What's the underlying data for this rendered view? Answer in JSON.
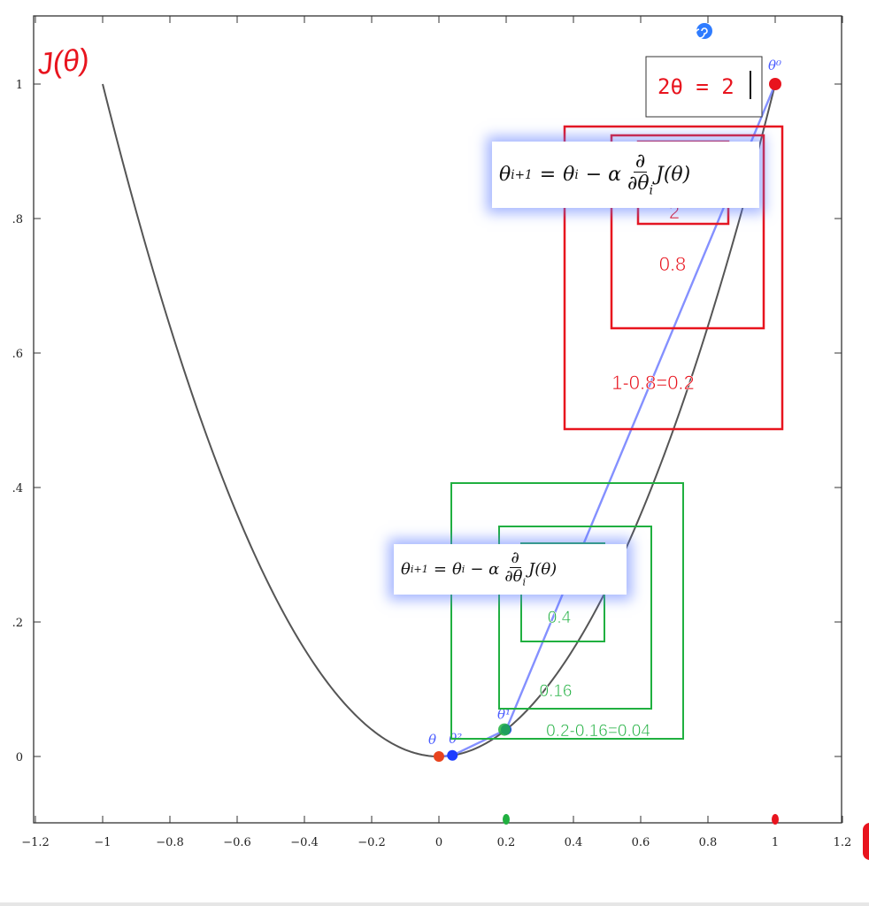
{
  "chart_data": {
    "type": "line",
    "xlim": [
      -1.2,
      1.2
    ],
    "ylim": [
      -0.1,
      1.1
    ],
    "x_ticks": [
      -1.2,
      -1,
      -0.8,
      -0.6,
      -0.4,
      -0.2,
      0,
      0.2,
      0.4,
      0.6,
      0.8,
      1,
      1.2
    ],
    "x_tick_labels": [
      "−1.2",
      "−1",
      "−0.8",
      "−0.6",
      "−0.4",
      "−0.2",
      "0",
      "0.2",
      "0.4",
      "0.6",
      "0.8",
      "1",
      "1.2"
    ],
    "y_ticks": [
      0,
      0.2,
      0.4,
      0.6,
      0.8,
      1
    ],
    "y_tick_labels": [
      "0",
      ".2",
      ".4",
      ".6",
      ".8",
      "1"
    ],
    "series": [
      {
        "kind": "curve",
        "function": "J(θ) = θ^2",
        "x_range": [
          -1,
          1
        ],
        "color": "#555555"
      },
      {
        "kind": "path",
        "color": "#6f7cff",
        "x": [
          1,
          0.2,
          0.04,
          0
        ],
        "y": [
          1,
          0.04,
          0.0016,
          0
        ]
      }
    ],
    "points": [
      {
        "x": 1,
        "y": 1,
        "color": "#e8141e",
        "label": "θ⁰"
      },
      {
        "x": 0.2,
        "y": 0.04,
        "color": "#1d3cff",
        "label": "θ¹"
      },
      {
        "x": 0.04,
        "y": 0.0016,
        "color": "#1d3cff",
        "label": "θ²"
      },
      {
        "x": 0,
        "y": 0,
        "color": "#e8441e",
        "label": "θ"
      }
    ],
    "axis_markers": [
      {
        "x": 0.2,
        "color": "#20b040"
      },
      {
        "x": 1,
        "color": "#e8141e"
      }
    ],
    "annotations": {
      "ylabel_handwritten": "J(θ)",
      "derivative_box": "2θ = 2",
      "red_labels": [
        "2",
        "0.8",
        "1-0.8=0.2"
      ],
      "green_labels": [
        "0.4",
        "0.16",
        "0.2-0.16=0.04"
      ],
      "update_rule": "θi+1 = θi − α ∂/∂θi J(θ)"
    }
  },
  "formula_top": {
    "lhs": "θ",
    "lhs_sub": "i+1",
    "eq": "=",
    "theta": "θ",
    "theta_sub": "i",
    "minus_alpha": "− α",
    "partial": "∂",
    "den": "∂θ",
    "den_sub": "i",
    "tail": "J(θ)"
  },
  "formula_bottom": {
    "lhs": "θ",
    "lhs_sub": "i+1",
    "eq": "=",
    "theta": "θ",
    "theta_sub": "i",
    "minus_alpha": "− α",
    "partial": "∂",
    "den": "∂θ",
    "den_sub": "i",
    "tail": "J(θ)"
  },
  "colors": {
    "red": "#e8141e",
    "green": "#20b040",
    "blue": "#1d3cff",
    "curve": "#555555",
    "path": "#6f7cff"
  },
  "icons": [
    "spiral-icon",
    "text-cursor-icon"
  ]
}
